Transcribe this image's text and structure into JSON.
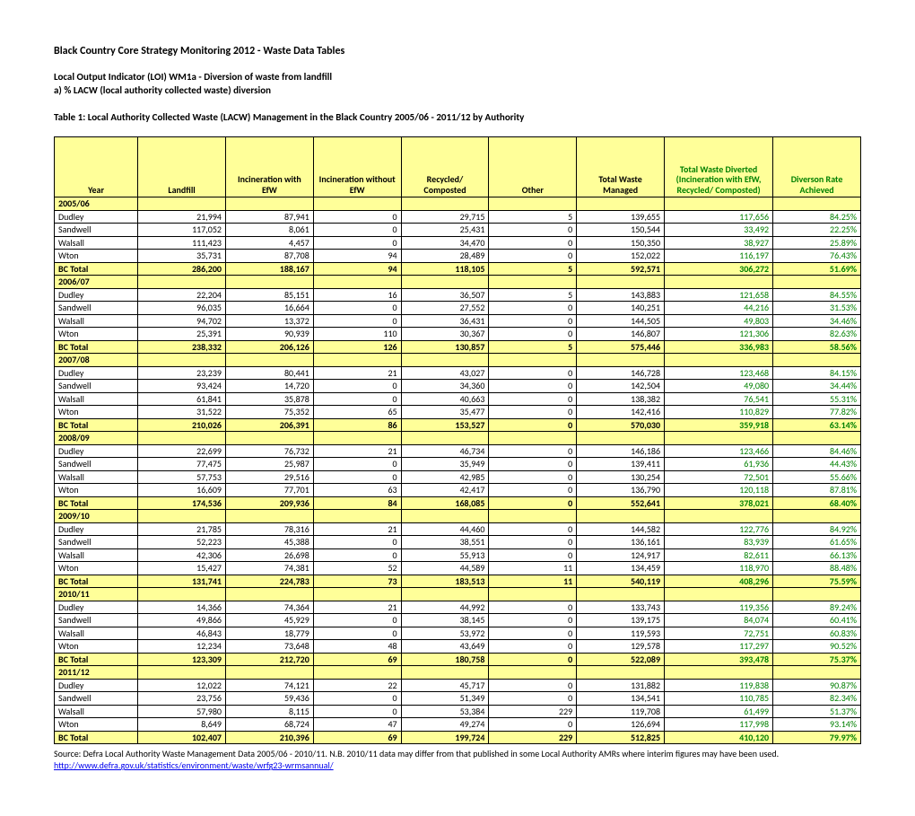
{
  "headings": {
    "main": "Black Country Core Strategy Monitoring 2012 - Waste Data Tables",
    "sub1": "Local Output Indicator (LOI) WM1a - Diversion of waste from landfill",
    "sub2": "a) % LACW (local authority collected waste) diversion",
    "table": "Table 1: Local Authority Collected Waste (LACW) Management in the Black Country 2005/06 - 2011/12 by Authority"
  },
  "columns": [
    "Year",
    "Landfill",
    "Incineration with EfW",
    "Incineration without EfW",
    "Recycled/ Composted",
    "Other",
    "Total Waste Managed",
    "Total Waste Diverted (Incineration with EfW, Recycled/ Composted)",
    "Diverson Rate Achieved"
  ],
  "column_green": [
    false,
    false,
    false,
    false,
    false,
    false,
    false,
    true,
    true
  ],
  "sections": [
    {
      "year": "2005/06",
      "rows": [
        {
          "auth": "Dudley",
          "v": [
            "21,994",
            "87,941",
            "0",
            "29,715",
            "5",
            "139,655",
            "117,656",
            "84.25%"
          ]
        },
        {
          "auth": "Sandwell",
          "v": [
            "117,052",
            "8,061",
            "0",
            "25,431",
            "0",
            "150,544",
            "33,492",
            "22.25%"
          ]
        },
        {
          "auth": "Walsall",
          "v": [
            "111,423",
            "4,457",
            "0",
            "34,470",
            "0",
            "150,350",
            "38,927",
            "25.89%"
          ]
        },
        {
          "auth": "Wton",
          "v": [
            "35,731",
            "87,708",
            "94",
            "28,489",
            "0",
            "152,022",
            "116,197",
            "76.43%"
          ]
        }
      ],
      "total": {
        "auth": "BC Total",
        "v": [
          "286,200",
          "188,167",
          "94",
          "118,105",
          "5",
          "592,571",
          "306,272",
          "51.69%"
        ]
      }
    },
    {
      "year": "2006/07",
      "rows": [
        {
          "auth": "Dudley",
          "v": [
            "22,204",
            "85,151",
            "16",
            "36,507",
            "5",
            "143,883",
            "121,658",
            "84.55%"
          ]
        },
        {
          "auth": "Sandwell",
          "v": [
            "96,035",
            "16,664",
            "0",
            "27,552",
            "0",
            "140,251",
            "44,216",
            "31.53%"
          ]
        },
        {
          "auth": "Walsall",
          "v": [
            "94,702",
            "13,372",
            "0",
            "36,431",
            "0",
            "144,505",
            "49,803",
            "34.46%"
          ]
        },
        {
          "auth": "Wton",
          "v": [
            "25,391",
            "90,939",
            "110",
            "30,367",
            "0",
            "146,807",
            "121,306",
            "82.63%"
          ]
        }
      ],
      "total": {
        "auth": "BC Total",
        "v": [
          "238,332",
          "206,126",
          "126",
          "130,857",
          "5",
          "575,446",
          "336,983",
          "58.56%"
        ]
      }
    },
    {
      "year": "2007/08",
      "rows": [
        {
          "auth": "Dudley",
          "v": [
            "23,239",
            "80,441",
            "21",
            "43,027",
            "0",
            "146,728",
            "123,468",
            "84.15%"
          ]
        },
        {
          "auth": "Sandwell",
          "v": [
            "93,424",
            "14,720",
            "0",
            "34,360",
            "0",
            "142,504",
            "49,080",
            "34.44%"
          ]
        },
        {
          "auth": "Walsall",
          "v": [
            "61,841",
            "35,878",
            "0",
            "40,663",
            "0",
            "138,382",
            "76,541",
            "55.31%"
          ]
        },
        {
          "auth": "Wton",
          "v": [
            "31,522",
            "75,352",
            "65",
            "35,477",
            "0",
            "142,416",
            "110,829",
            "77.82%"
          ]
        }
      ],
      "total": {
        "auth": "BC Total",
        "v": [
          "210,026",
          "206,391",
          "86",
          "153,527",
          "0",
          "570,030",
          "359,918",
          "63.14%"
        ]
      }
    },
    {
      "year": "2008/09",
      "rows": [
        {
          "auth": "Dudley",
          "v": [
            "22,699",
            "76,732",
            "21",
            "46,734",
            "0",
            "146,186",
            "123,466",
            "84.46%"
          ]
        },
        {
          "auth": "Sandwell",
          "v": [
            "77,475",
            "25,987",
            "0",
            "35,949",
            "0",
            "139,411",
            "61,936",
            "44.43%"
          ]
        },
        {
          "auth": "Walsall",
          "v": [
            "57,753",
            "29,516",
            "0",
            "42,985",
            "0",
            "130,254",
            "72,501",
            "55.66%"
          ]
        },
        {
          "auth": "Wton",
          "v": [
            "16,609",
            "77,701",
            "63",
            "42,417",
            "0",
            "136,790",
            "120,118",
            "87.81%"
          ]
        }
      ],
      "total": {
        "auth": "BC Total",
        "v": [
          "174,536",
          "209,936",
          "84",
          "168,085",
          "0",
          "552,641",
          "378,021",
          "68.40%"
        ]
      }
    },
    {
      "year": "2009/10",
      "rows": [
        {
          "auth": "Dudley",
          "v": [
            "21,785",
            "78,316",
            "21",
            "44,460",
            "0",
            "144,582",
            "122,776",
            "84.92%"
          ]
        },
        {
          "auth": "Sandwell",
          "v": [
            "52,223",
            "45,388",
            "0",
            "38,551",
            "0",
            "136,161",
            "83,939",
            "61.65%"
          ]
        },
        {
          "auth": "Walsall",
          "v": [
            "42,306",
            "26,698",
            "0",
            "55,913",
            "0",
            "124,917",
            "82,611",
            "66.13%"
          ]
        },
        {
          "auth": "Wton",
          "v": [
            "15,427",
            "74,381",
            "52",
            "44,589",
            "11",
            "134,459",
            "118,970",
            "88.48%"
          ]
        }
      ],
      "total": {
        "auth": "BC Total",
        "v": [
          "131,741",
          "224,783",
          "73",
          "183,513",
          "11",
          "540,119",
          "408,296",
          "75.59%"
        ]
      }
    },
    {
      "year": "2010/11",
      "rows": [
        {
          "auth": "Dudley",
          "v": [
            "14,366",
            "74,364",
            "21",
            "44,992",
            "0",
            "133,743",
            "119,356",
            "89.24%"
          ]
        },
        {
          "auth": "Sandwell",
          "v": [
            "49,866",
            "45,929",
            "0",
            "38,145",
            "0",
            "139,175",
            "84,074",
            "60.41%"
          ]
        },
        {
          "auth": "Walsall",
          "v": [
            "46,843",
            "18,779",
            "0",
            "53,972",
            "0",
            "119,593",
            "72,751",
            "60.83%"
          ]
        },
        {
          "auth": "Wton",
          "v": [
            "12,234",
            "73,648",
            "48",
            "43,649",
            "0",
            "129,578",
            "117,297",
            "90.52%"
          ]
        }
      ],
      "total": {
        "auth": "BC Total",
        "v": [
          "123,309",
          "212,720",
          "69",
          "180,758",
          "0",
          "522,089",
          "393,478",
          "75.37%"
        ]
      }
    },
    {
      "year": "2011/12",
      "rows": [
        {
          "auth": "Dudley",
          "v": [
            "12,022",
            "74,121",
            "22",
            "45,717",
            "0",
            "131,882",
            "119,838",
            "90.87%"
          ]
        },
        {
          "auth": "Sandwell",
          "v": [
            "23,756",
            "59,436",
            "0",
            "51,349",
            "0",
            "134,541",
            "110,785",
            "82.34%"
          ]
        },
        {
          "auth": "Walsall",
          "v": [
            "57,980",
            "8,115",
            "0",
            "53,384",
            "229",
            "119,708",
            "61,499",
            "51.37%"
          ]
        },
        {
          "auth": "Wton",
          "v": [
            "8,649",
            "68,724",
            "47",
            "49,274",
            "0",
            "126,694",
            "117,998",
            "93.14%"
          ]
        }
      ],
      "total": {
        "auth": "BC Total",
        "v": [
          "102,407",
          "210,396",
          "69",
          "199,724",
          "229",
          "512,825",
          "410,120",
          "79.97%"
        ]
      }
    }
  ],
  "source": "Source:  Defra Local Authority Waste Management Data 2005/06 - 2010/11. N.B. 2010/11 data may differ from that published in some Local Authority AMRs where interim figures may have been used.",
  "link": "http://www.defra.gov.uk/statistics/environment/waste/wrfg23-wrmsannual/",
  "style": {
    "header_bg": "#ffff99",
    "green": "#008000"
  }
}
